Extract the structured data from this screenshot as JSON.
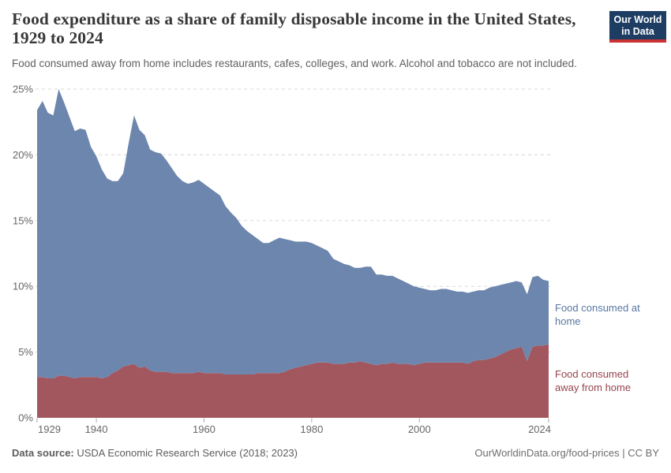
{
  "header": {
    "title": "Food expenditure as a share of family disposable income in the United States, 1929 to 2024",
    "subtitle": "Food consumed away from home includes restaurants, cafes, colleges, and work. Alcohol and tobacco are not included.",
    "logo": {
      "line1": "Our World",
      "line2": "in Data",
      "bg_color": "#1d3d63",
      "accent_color": "#cb3333"
    }
  },
  "chart_data": {
    "type": "area",
    "stacked": true,
    "title": "Food expenditure as a share of family disposable income in the United States, 1929 to 2024",
    "xlabel": "",
    "ylabel": "",
    "xlim": [
      1929,
      2024
    ],
    "ylim": [
      0,
      25
    ],
    "grid": "dashed horizontal",
    "legend_position": "right-edge annotations",
    "x": [
      1929,
      1930,
      1931,
      1932,
      1933,
      1934,
      1935,
      1936,
      1937,
      1938,
      1939,
      1940,
      1941,
      1942,
      1943,
      1944,
      1945,
      1946,
      1947,
      1948,
      1949,
      1950,
      1951,
      1952,
      1953,
      1954,
      1955,
      1956,
      1957,
      1958,
      1959,
      1960,
      1961,
      1962,
      1963,
      1964,
      1965,
      1966,
      1967,
      1968,
      1969,
      1970,
      1971,
      1972,
      1973,
      1974,
      1975,
      1976,
      1977,
      1978,
      1979,
      1980,
      1981,
      1982,
      1983,
      1984,
      1985,
      1986,
      1987,
      1988,
      1989,
      1990,
      1991,
      1992,
      1993,
      1994,
      1995,
      1996,
      1997,
      1998,
      1999,
      2000,
      2001,
      2002,
      2003,
      2004,
      2005,
      2006,
      2007,
      2008,
      2009,
      2010,
      2011,
      2012,
      2013,
      2014,
      2015,
      2016,
      2017,
      2018,
      2019,
      2020,
      2021,
      2022,
      2023,
      2024
    ],
    "series": [
      {
        "name": "Food consumed away from home",
        "color": "#a2575f",
        "label_color": "#96444d",
        "unit": "%",
        "values": [
          3.1,
          3.1,
          3.0,
          3.0,
          3.2,
          3.2,
          3.1,
          3.0,
          3.1,
          3.1,
          3.1,
          3.1,
          3.0,
          3.1,
          3.4,
          3.6,
          3.9,
          4.0,
          4.1,
          3.8,
          3.9,
          3.6,
          3.5,
          3.5,
          3.5,
          3.4,
          3.4,
          3.4,
          3.4,
          3.4,
          3.5,
          3.4,
          3.4,
          3.4,
          3.4,
          3.3,
          3.3,
          3.3,
          3.3,
          3.3,
          3.3,
          3.4,
          3.4,
          3.4,
          3.4,
          3.4,
          3.5,
          3.7,
          3.8,
          3.9,
          4.0,
          4.1,
          4.2,
          4.2,
          4.2,
          4.1,
          4.1,
          4.1,
          4.2,
          4.2,
          4.3,
          4.2,
          4.1,
          4.0,
          4.1,
          4.1,
          4.2,
          4.1,
          4.1,
          4.1,
          4.0,
          4.1,
          4.2,
          4.2,
          4.2,
          4.2,
          4.2,
          4.2,
          4.2,
          4.2,
          4.1,
          4.3,
          4.4,
          4.4,
          4.5,
          4.6,
          4.8,
          5.0,
          5.2,
          5.3,
          5.4,
          4.3,
          5.4,
          5.5,
          5.5,
          5.6
        ]
      },
      {
        "name": "Food consumed at home",
        "color": "#6d86ae",
        "label_color": "#5878a3",
        "unit": "%",
        "values": [
          20.3,
          21.0,
          20.2,
          20.0,
          21.8,
          20.8,
          19.8,
          18.8,
          18.9,
          18.8,
          17.5,
          16.8,
          15.9,
          15.1,
          14.6,
          14.4,
          14.7,
          16.9,
          18.9,
          18.1,
          17.6,
          16.8,
          16.7,
          16.6,
          16.1,
          15.6,
          15.0,
          14.6,
          14.4,
          14.5,
          14.6,
          14.4,
          14.1,
          13.8,
          13.5,
          12.8,
          12.3,
          11.9,
          11.3,
          10.9,
          10.6,
          10.2,
          9.9,
          9.9,
          10.1,
          10.3,
          10.1,
          9.8,
          9.6,
          9.5,
          9.4,
          9.2,
          8.9,
          8.7,
          8.5,
          8.0,
          7.8,
          7.6,
          7.4,
          7.2,
          7.1,
          7.3,
          7.4,
          6.9,
          6.8,
          6.7,
          6.6,
          6.5,
          6.3,
          6.1,
          6.0,
          5.8,
          5.6,
          5.5,
          5.5,
          5.6,
          5.6,
          5.5,
          5.4,
          5.4,
          5.4,
          5.3,
          5.3,
          5.3,
          5.4,
          5.4,
          5.3,
          5.2,
          5.1,
          5.1,
          4.9,
          5.1,
          5.3,
          5.3,
          5.0,
          4.8
        ]
      }
    ],
    "xticks": [
      1929,
      1940,
      1960,
      1980,
      2000,
      2024
    ],
    "yticks": [
      {
        "value": 0,
        "label": "0%"
      },
      {
        "value": 5,
        "label": "5%"
      },
      {
        "value": 10,
        "label": "10%"
      },
      {
        "value": 15,
        "label": "15%"
      },
      {
        "value": 20,
        "label": "20%"
      },
      {
        "value": 25,
        "label": "25%"
      }
    ]
  },
  "footer": {
    "source_label": "Data source:",
    "source_text": " USDA Economic Research Service (2018; 2023)",
    "attribution": "OurWorldinData.org/food-prices | CC BY"
  }
}
